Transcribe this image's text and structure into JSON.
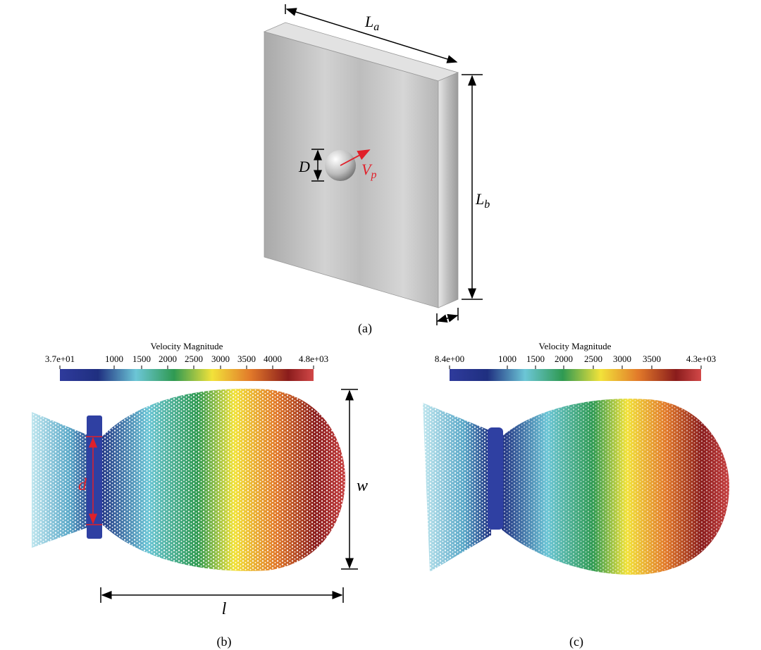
{
  "panel_a": {
    "plate_width": {
      "symbol": "L",
      "subscript": "a"
    },
    "plate_height": {
      "symbol": "L",
      "subscript": "b"
    },
    "sphere_diameter": "D",
    "velocity": {
      "symbol": "V",
      "subscript": "p"
    },
    "caption": "(a)"
  },
  "panel_b": {
    "colorbar": {
      "title": "Velocity Magnitude",
      "ticks": [
        "3.7e+01",
        "1000",
        "1500",
        "2000",
        "2500",
        "3000",
        "3500",
        "4000",
        "4.8e+03"
      ]
    },
    "diameter": "d",
    "width": "w",
    "length": "l",
    "caption": "(b)"
  },
  "panel_c": {
    "colorbar": {
      "title": "Velocity Magnitude",
      "ticks": [
        "8.4e+00",
        "1000",
        "1500",
        "2000",
        "2500",
        "3000",
        "3500",
        "4.3e+03"
      ]
    },
    "caption": "(c)"
  }
}
